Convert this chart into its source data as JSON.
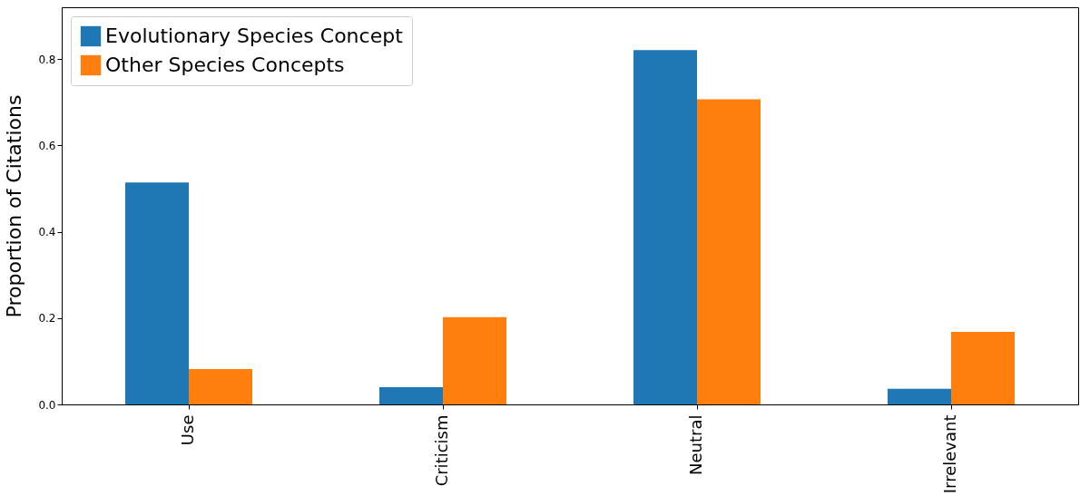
{
  "chart_data": {
    "type": "bar",
    "ylabel": "Proportion of Citations",
    "categories": [
      "Use",
      "Criticism",
      "Neutral",
      "Irrelevant"
    ],
    "series": [
      {
        "name": "Evolutionary Species Concept",
        "color": "#1f77b4",
        "values": [
          0.514,
          0.04,
          0.821,
          0.036
        ]
      },
      {
        "name": "Other Species Concepts",
        "color": "#ff7f0e",
        "values": [
          0.082,
          0.202,
          0.707,
          0.168
        ]
      }
    ],
    "ylim": [
      0,
      0.92
    ],
    "yticks": [
      {
        "value": 0,
        "label": "0.0"
      },
      0.2,
      0.4,
      0.6,
      0.8
    ],
    "legend": "top left",
    "grid": false
  }
}
